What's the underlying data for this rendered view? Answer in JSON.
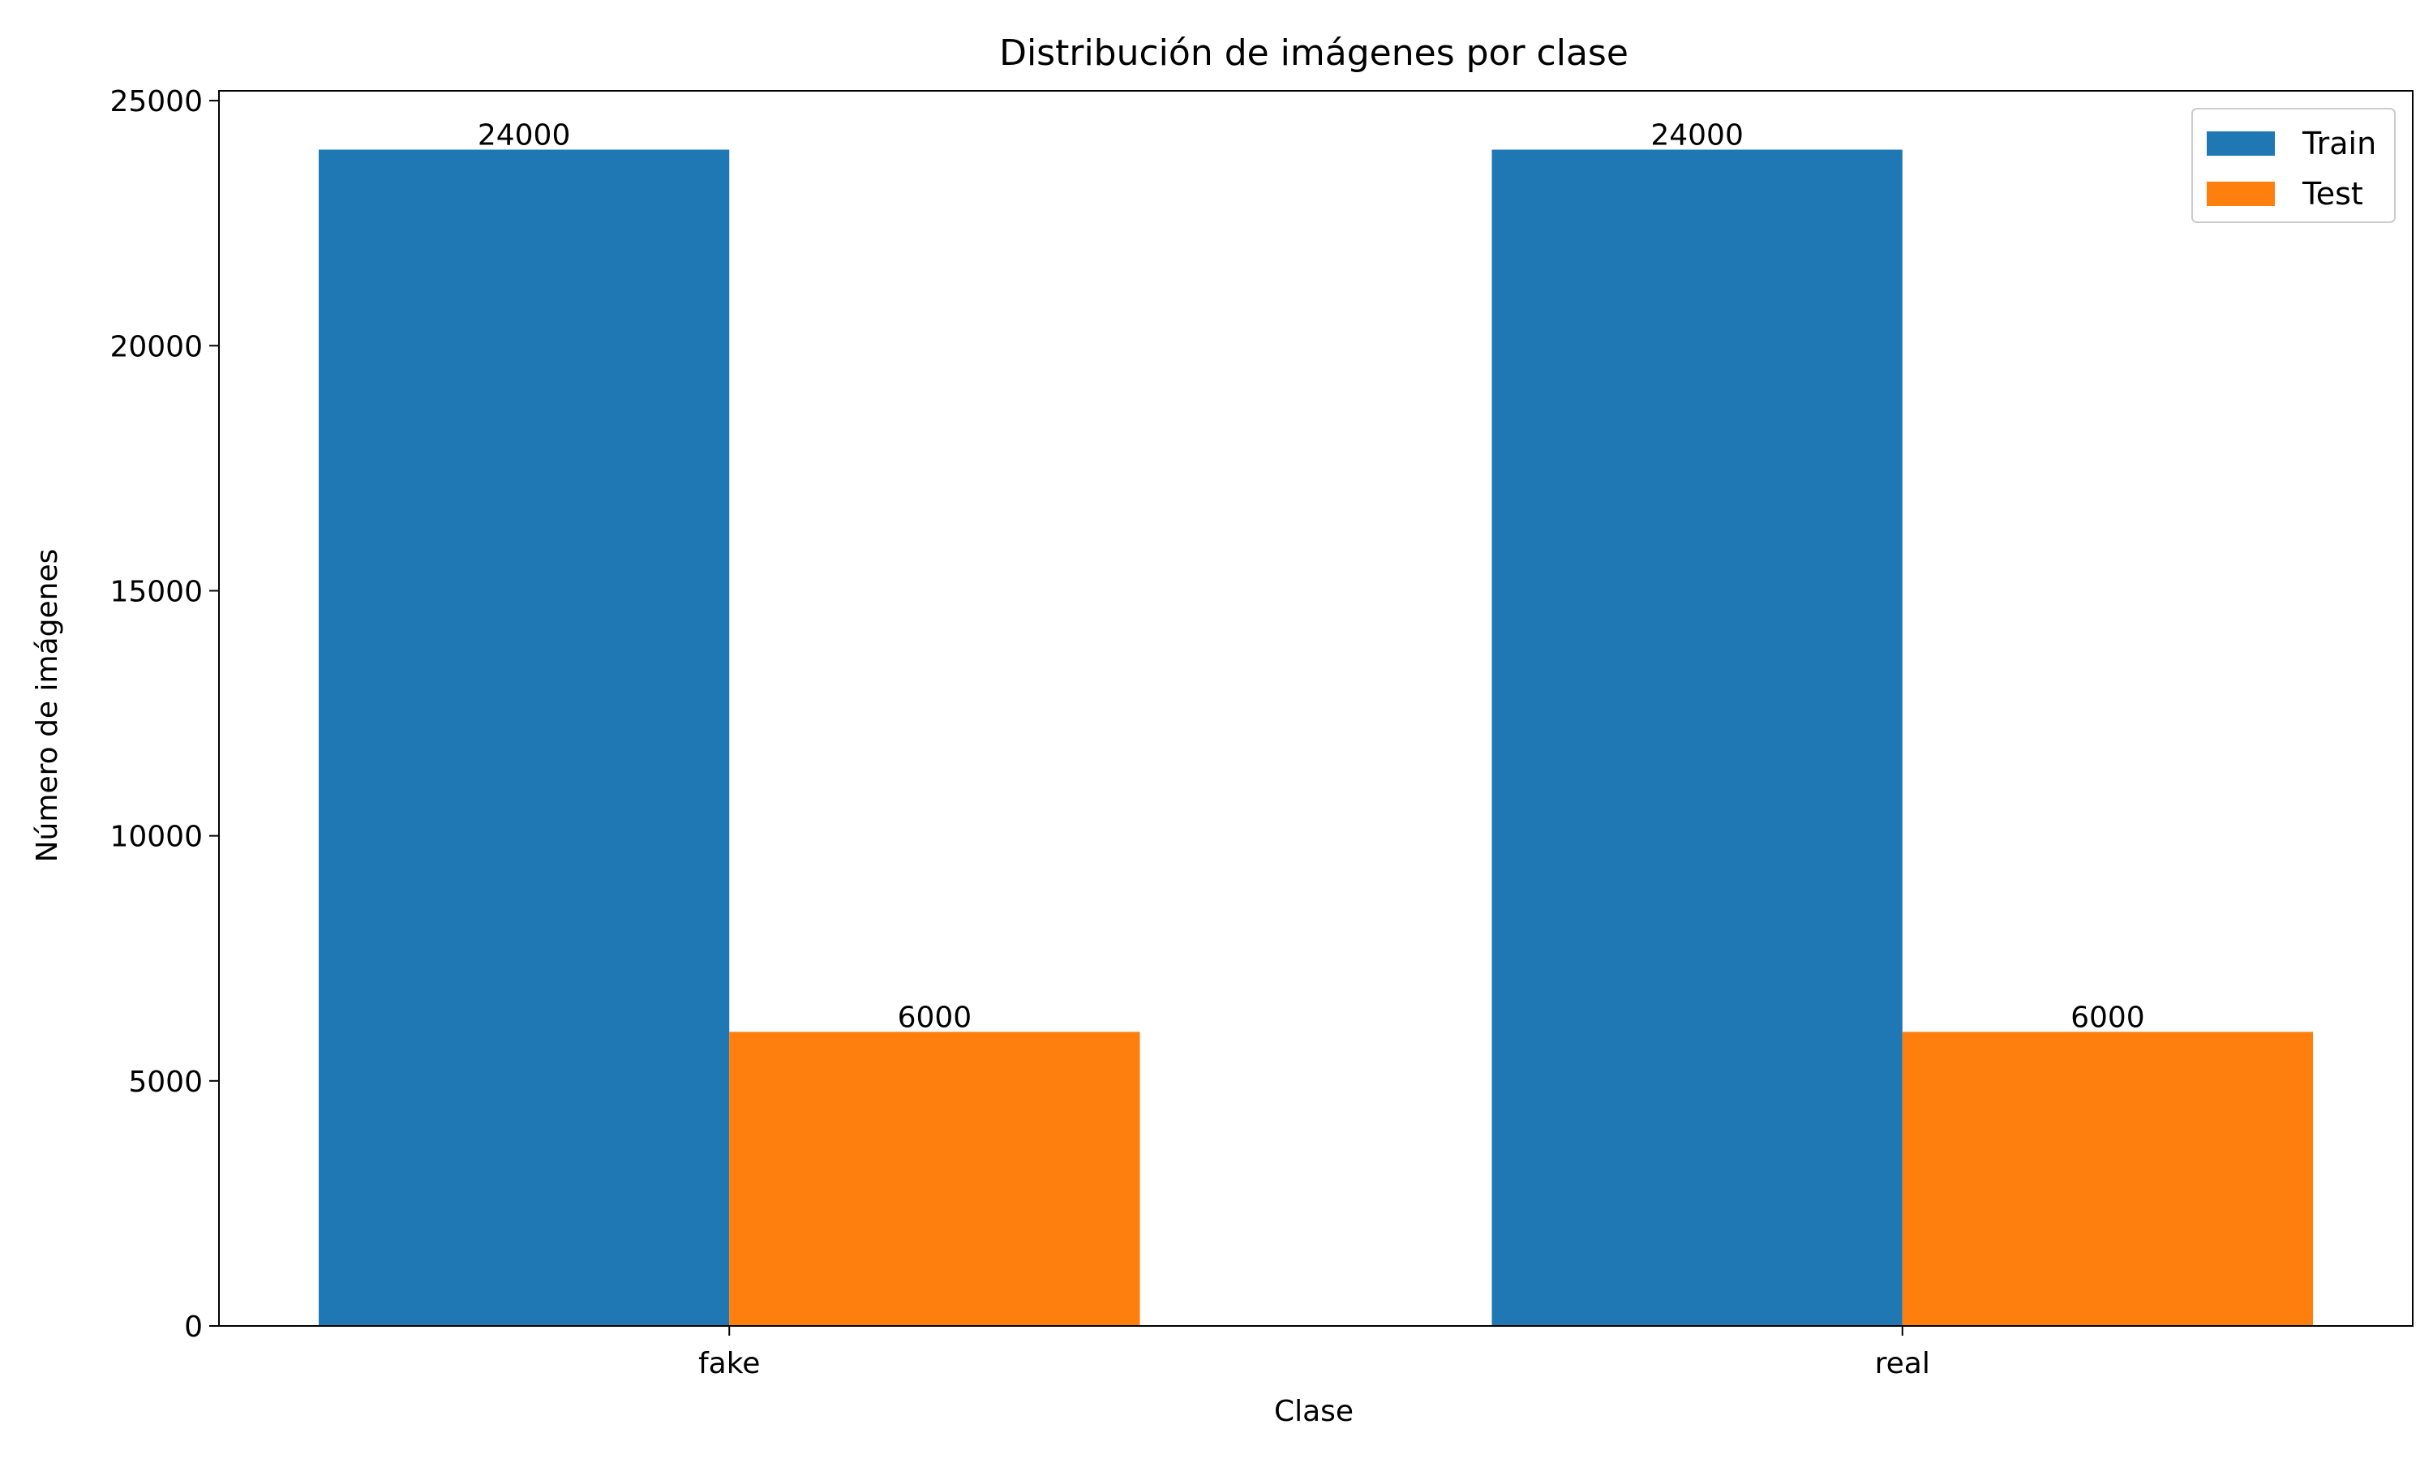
{
  "chart_data": {
    "type": "bar",
    "title": "Distribución de imágenes por clase",
    "xlabel": "Clase",
    "ylabel": "Número de imágenes",
    "categories": [
      "fake",
      "real"
    ],
    "series": [
      {
        "name": "Train",
        "values": [
          24000,
          24000
        ],
        "color": "#1f77b4"
      },
      {
        "name": "Test",
        "values": [
          6000,
          6000
        ],
        "color": "#ff7f0e"
      }
    ],
    "ylim": [
      0,
      25200
    ],
    "yticks": [
      0,
      5000,
      10000,
      15000,
      20000,
      25000
    ],
    "grid": false,
    "legend_position": "top-right",
    "bar_labels": true
  }
}
